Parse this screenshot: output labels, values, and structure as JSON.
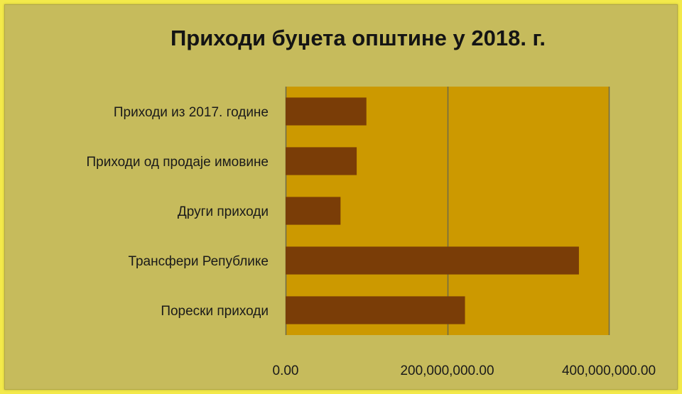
{
  "chart_data": {
    "type": "bar",
    "orientation": "horizontal",
    "title": "Приходи буџета општине у 2018. г.",
    "categories": [
      "Приходи из 2017. године",
      "Приходи од продаје имовине",
      "Други приходи ",
      "Трансфери Републике",
      "Порески приходи "
    ],
    "values": [
      100000000,
      88000000,
      68000000,
      363000000,
      222000000
    ],
    "xlim": [
      0,
      400000000
    ],
    "xticks": [
      "0.00",
      "200,000,000.00",
      "400,000,000.00"
    ],
    "xlabel": "",
    "ylabel": "",
    "grid": "vertical",
    "legend": "none",
    "colors": {
      "bar": "#7a3d07",
      "plot_background": "#cc9900",
      "gridline": "#6e6a48",
      "chart_background": "#c6bb5c",
      "page_background": "#f3e94a"
    }
  }
}
